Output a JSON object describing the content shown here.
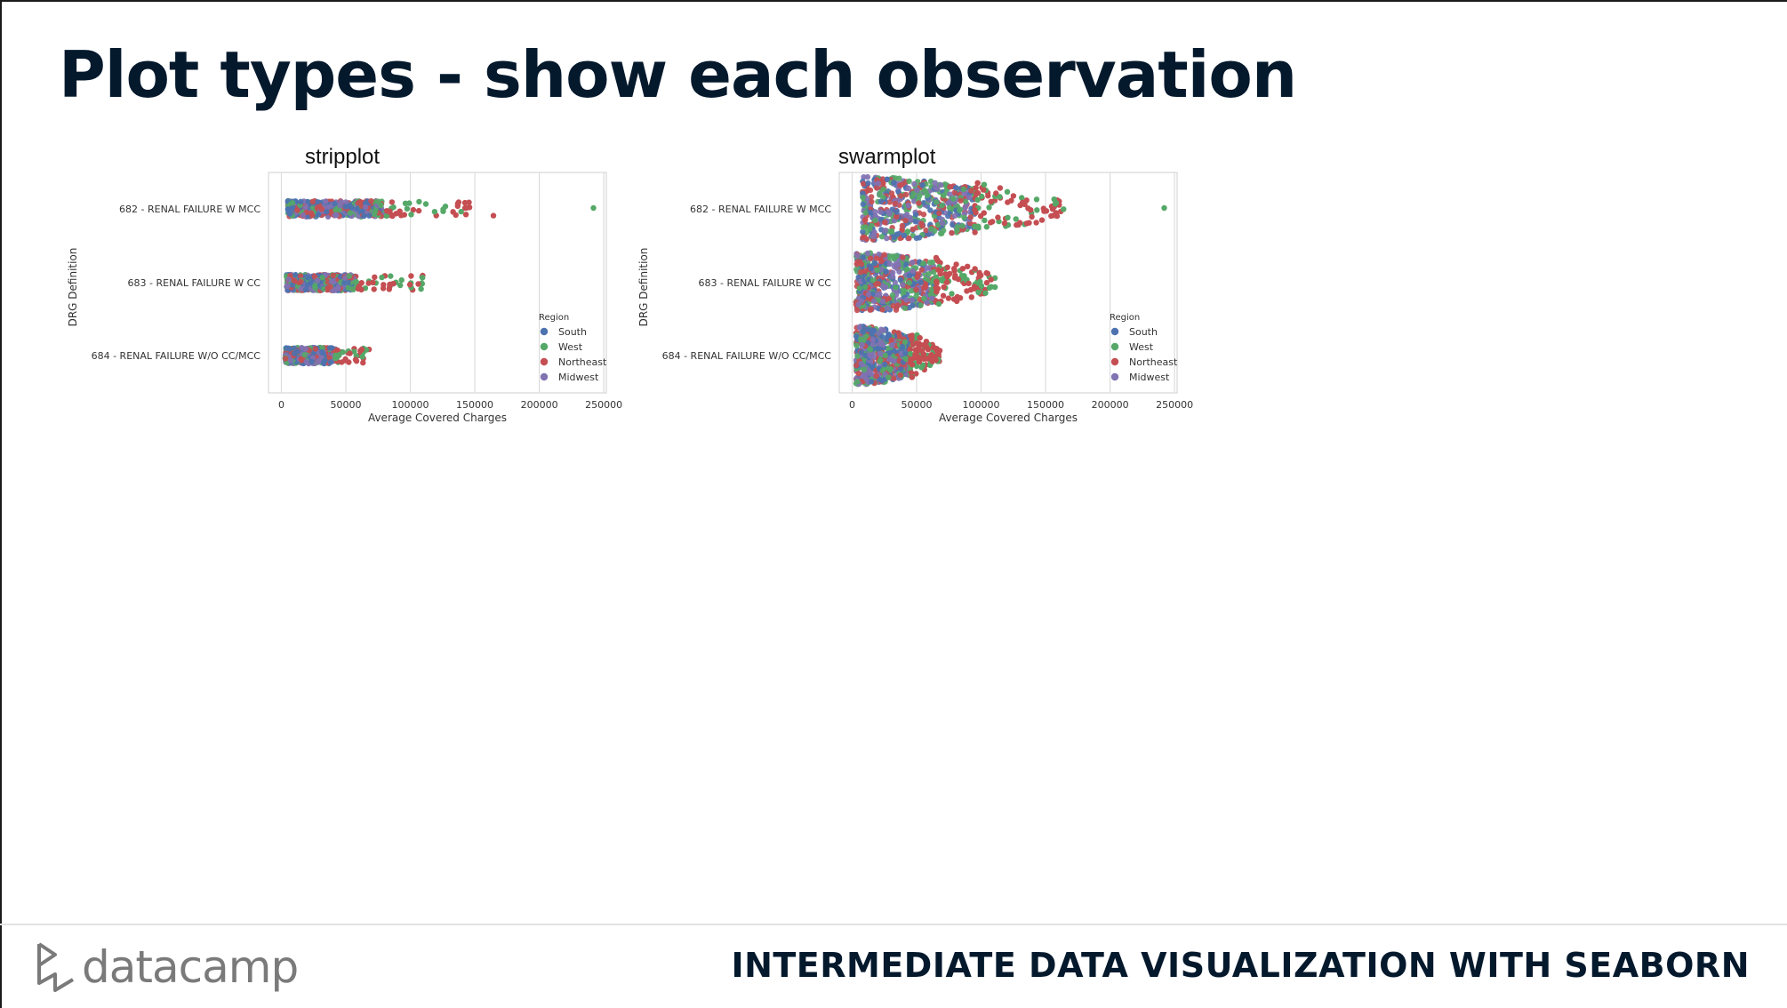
{
  "slide": {
    "title": "Plot types - show each observation",
    "brand": "datacamp",
    "course": "INTERMEDIATE DATA VISUALIZATION WITH SEABORN",
    "logo_icon": "datacamp-logo-icon"
  },
  "chart_data": [
    {
      "type": "scatter",
      "title": "stripplot",
      "xlabel": "Average Covered Charges",
      "ylabel": "DRG Definition",
      "xlim": [
        -10000,
        252000
      ],
      "xticks": [
        0,
        50000,
        100000,
        150000,
        200000,
        250000
      ],
      "categories": [
        "682 - RENAL FAILURE W MCC",
        "683 - RENAL FAILURE W CC",
        "684 - RENAL FAILURE W/O CC/MCC"
      ],
      "grid": "x",
      "legend": {
        "title": "Region",
        "position": "lower-right",
        "entries": [
          "South",
          "West",
          "Northeast",
          "Midwest"
        ]
      },
      "series": [
        {
          "name": "South",
          "color": "#4c72b0"
        },
        {
          "name": "West",
          "color": "#55a868"
        },
        {
          "name": "Northeast",
          "color": "#c44e52"
        },
        {
          "name": "Midwest",
          "color": "#8172b2"
        }
      ],
      "ranges": [
        {
          "category": "682 - RENAL FAILURE W MCC",
          "dense_min": 5000,
          "dense_max": 80000,
          "tail_max": 165000,
          "outlier": 242000
        },
        {
          "category": "683 - RENAL FAILURE W CC",
          "dense_min": 4000,
          "dense_max": 58000,
          "tail_max": 112000
        },
        {
          "category": "684 - RENAL FAILURE W/O CC/MCC",
          "dense_min": 3000,
          "dense_max": 42000,
          "tail_max": 68000
        }
      ]
    },
    {
      "type": "scatter",
      "title": "swarmplot",
      "xlabel": "Average Covered Charges",
      "ylabel": "DRG Definition",
      "xlim": [
        -10000,
        252000
      ],
      "xticks": [
        0,
        50000,
        100000,
        150000,
        200000,
        250000
      ],
      "categories": [
        "682 - RENAL FAILURE W MCC",
        "683 - RENAL FAILURE W CC",
        "684 - RENAL FAILURE W/O CC/MCC"
      ],
      "grid": "x",
      "legend": {
        "title": "Region",
        "position": "lower-right",
        "entries": [
          "South",
          "West",
          "Northeast",
          "Midwest"
        ]
      },
      "series": [
        {
          "name": "South",
          "color": "#4c72b0"
        },
        {
          "name": "West",
          "color": "#55a868"
        },
        {
          "name": "Northeast",
          "color": "#c44e52"
        },
        {
          "name": "Midwest",
          "color": "#8172b2"
        }
      ],
      "ranges": [
        {
          "category": "682 - RENAL FAILURE W MCC",
          "dense_min": 8000,
          "dense_max": 95000,
          "tail_max": 165000,
          "outlier": 242000
        },
        {
          "category": "683 - RENAL FAILURE W CC",
          "dense_min": 3000,
          "dense_max": 65000,
          "tail_max": 112000
        },
        {
          "category": "684 - RENAL FAILURE W/O CC/MCC",
          "dense_min": 3000,
          "dense_max": 45000,
          "tail_max": 68000
        }
      ]
    }
  ]
}
